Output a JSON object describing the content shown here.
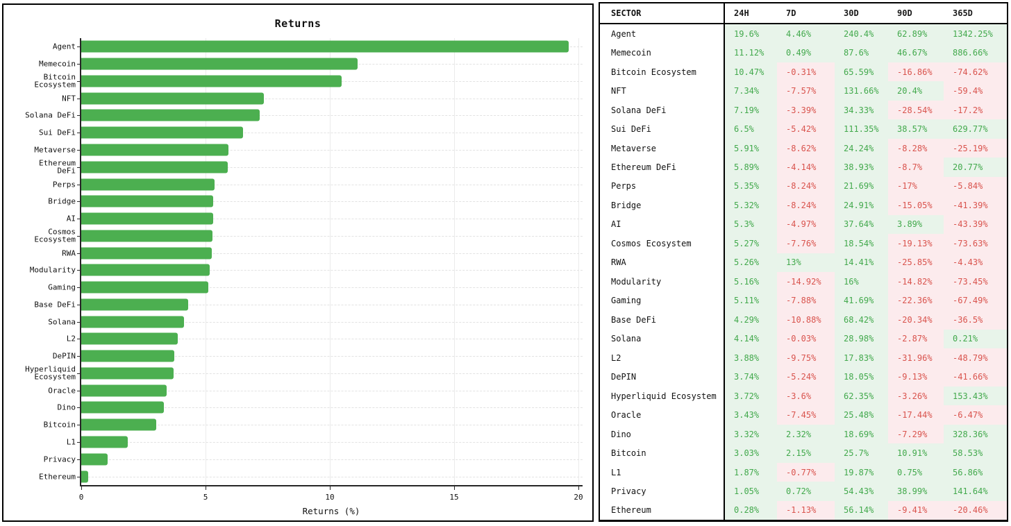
{
  "colors": {
    "bar_green": "#4caf50",
    "positive_text": "#42a94c",
    "negative_text": "#d9534d",
    "positive_bg": "#e8f4ea",
    "negative_bg": "#fcebed"
  },
  "chart_data": {
    "type": "bar",
    "orientation": "horizontal",
    "title": "Returns",
    "xlabel": "Returns (%)",
    "xlim": [
      0,
      20
    ],
    "xticks": [
      0,
      5,
      10,
      15,
      20
    ],
    "grid": true,
    "legend": false,
    "categories": [
      "Agent",
      "Memecoin",
      "Bitcoin\nEcosystem",
      "NFT",
      "Solana DeFi",
      "Sui DeFi",
      "Metaverse",
      "Ethereum\nDeFi",
      "Perps",
      "Bridge",
      "AI",
      "Cosmos\nEcosystem",
      "RWA",
      "Modularity",
      "Gaming",
      "Base DeFi",
      "Solana",
      "L2",
      "DePIN",
      "Hyperliquid\nEcosystem",
      "Oracle",
      "Dino",
      "Bitcoin",
      "L1",
      "Privacy",
      "Ethereum"
    ],
    "values": [
      19.6,
      11.12,
      10.47,
      7.34,
      7.19,
      6.5,
      5.91,
      5.89,
      5.35,
      5.32,
      5.3,
      5.27,
      5.26,
      5.16,
      5.11,
      4.29,
      4.14,
      3.88,
      3.74,
      3.72,
      3.43,
      3.32,
      3.03,
      1.87,
      1.05,
      0.28
    ]
  },
  "table": {
    "columns": [
      "SECTOR",
      "24H",
      "7D",
      "30D",
      "90D",
      "365D"
    ],
    "rows": [
      {
        "sector": "Agent",
        "values": [
          "19.6%",
          "4.46%",
          "240.4%",
          "62.89%",
          "1342.25%"
        ]
      },
      {
        "sector": "Memecoin",
        "values": [
          "11.12%",
          "0.49%",
          "87.6%",
          "46.67%",
          "886.66%"
        ]
      },
      {
        "sector": "Bitcoin Ecosystem",
        "values": [
          "10.47%",
          "-0.31%",
          "65.59%",
          "-16.86%",
          "-74.62%"
        ]
      },
      {
        "sector": "NFT",
        "values": [
          "7.34%",
          "-7.57%",
          "131.66%",
          "20.4%",
          "-59.4%"
        ]
      },
      {
        "sector": "Solana DeFi",
        "values": [
          "7.19%",
          "-3.39%",
          "34.33%",
          "-28.54%",
          "-17.2%"
        ]
      },
      {
        "sector": "Sui DeFi",
        "values": [
          "6.5%",
          "-5.42%",
          "111.35%",
          "38.57%",
          "629.77%"
        ]
      },
      {
        "sector": "Metaverse",
        "values": [
          "5.91%",
          "-8.62%",
          "24.24%",
          "-8.28%",
          "-25.19%"
        ]
      },
      {
        "sector": "Ethereum DeFi",
        "values": [
          "5.89%",
          "-4.14%",
          "38.93%",
          "-8.7%",
          "20.77%"
        ]
      },
      {
        "sector": "Perps",
        "values": [
          "5.35%",
          "-8.24%",
          "21.69%",
          "-17%",
          "-5.84%"
        ]
      },
      {
        "sector": "Bridge",
        "values": [
          "5.32%",
          "-8.24%",
          "24.91%",
          "-15.05%",
          "-41.39%"
        ]
      },
      {
        "sector": "AI",
        "values": [
          "5.3%",
          "-4.97%",
          "37.64%",
          "3.89%",
          "-43.39%"
        ]
      },
      {
        "sector": "Cosmos Ecosystem",
        "values": [
          "5.27%",
          "-7.76%",
          "18.54%",
          "-19.13%",
          "-73.63%"
        ]
      },
      {
        "sector": "RWA",
        "values": [
          "5.26%",
          "13%",
          "14.41%",
          "-25.85%",
          "-4.43%"
        ]
      },
      {
        "sector": "Modularity",
        "values": [
          "5.16%",
          "-14.92%",
          "16%",
          "-14.82%",
          "-73.45%"
        ]
      },
      {
        "sector": "Gaming",
        "values": [
          "5.11%",
          "-7.88%",
          "41.69%",
          "-22.36%",
          "-67.49%"
        ]
      },
      {
        "sector": "Base DeFi",
        "values": [
          "4.29%",
          "-10.88%",
          "68.42%",
          "-20.34%",
          "-36.5%"
        ]
      },
      {
        "sector": "Solana",
        "values": [
          "4.14%",
          "-0.03%",
          "28.98%",
          "-2.87%",
          "0.21%"
        ]
      },
      {
        "sector": "L2",
        "values": [
          "3.88%",
          "-9.75%",
          "17.83%",
          "-31.96%",
          "-48.79%"
        ]
      },
      {
        "sector": "DePIN",
        "values": [
          "3.74%",
          "-5.24%",
          "18.05%",
          "-9.13%",
          "-41.66%"
        ]
      },
      {
        "sector": "Hyperliquid Ecosystem",
        "values": [
          "3.72%",
          "-3.6%",
          "62.35%",
          "-3.26%",
          "153.43%"
        ]
      },
      {
        "sector": "Oracle",
        "values": [
          "3.43%",
          "-7.45%",
          "25.48%",
          "-17.44%",
          "-6.47%"
        ]
      },
      {
        "sector": "Dino",
        "values": [
          "3.32%",
          "2.32%",
          "18.69%",
          "-7.29%",
          "328.36%"
        ]
      },
      {
        "sector": "Bitcoin",
        "values": [
          "3.03%",
          "2.15%",
          "25.7%",
          "10.91%",
          "58.53%"
        ]
      },
      {
        "sector": "L1",
        "values": [
          "1.87%",
          "-0.77%",
          "19.87%",
          "0.75%",
          "56.86%"
        ]
      },
      {
        "sector": "Privacy",
        "values": [
          "1.05%",
          "0.72%",
          "54.43%",
          "38.99%",
          "141.64%"
        ]
      },
      {
        "sector": "Ethereum",
        "values": [
          "0.28%",
          "-1.13%",
          "56.14%",
          "-9.41%",
          "-20.46%"
        ]
      }
    ]
  }
}
